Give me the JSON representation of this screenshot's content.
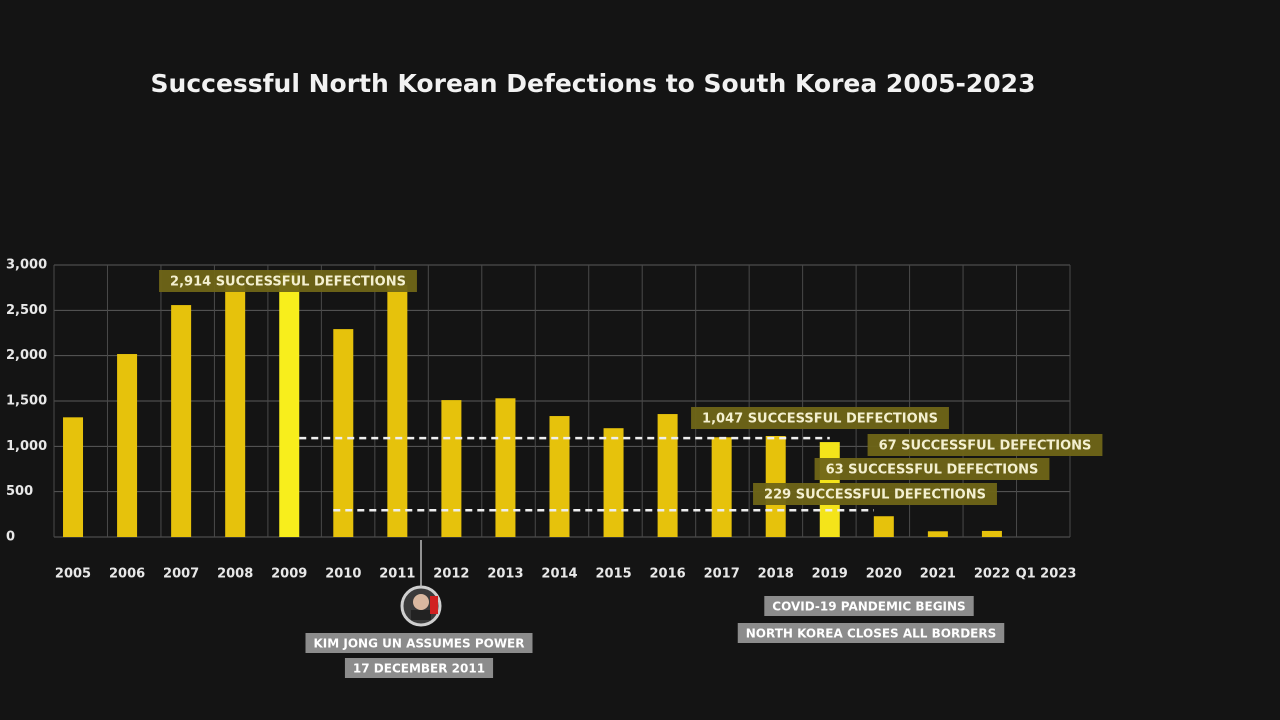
{
  "chart_data": {
    "type": "bar",
    "title": "Successful North Korean Defections to South Korea 2005-2023",
    "categories": [
      "2005",
      "2006",
      "2007",
      "2008",
      "2009",
      "2010",
      "2011",
      "2012",
      "2013",
      "2014",
      "2015",
      "2016",
      "2017",
      "2018",
      "2019",
      "2020",
      "2021",
      "2022",
      "Q1 2023"
    ],
    "values": [
      1320,
      2018,
      2558,
      2780,
      2914,
      2293,
      2780,
      1510,
      1530,
      1334,
      1200,
      1356,
      1100,
      1114,
      1047,
      229,
      63,
      67,
      null
    ],
    "value_labels": [
      null,
      null,
      null,
      null,
      "2,914 SUCCESSFUL DEFECTIONS",
      null,
      null,
      null,
      null,
      null,
      null,
      null,
      null,
      null,
      "1,047 SUCCESSFUL DEFECTIONS",
      "229 SUCCESSFUL DEFECTIONS",
      "63 SUCCESSFUL DEFECTIONS",
      "67 SUCCESSFUL DEFECTIONS",
      null
    ],
    "colors": [
      "#e6c20c",
      "#e6c20c",
      "#e6c20c",
      "#e6c20c",
      "#f8ee1c",
      "#e6c20c",
      "#e6c20c",
      "#e6c20c",
      "#e6c20c",
      "#e6c20c",
      "#e6c20c",
      "#e6c20c",
      "#e6c20c",
      "#e6c20c",
      "#f4e41a",
      "#e6c20c",
      "#e6c20c",
      "#e6c20c",
      "#e6c20c"
    ],
    "ylim": [
      0,
      3000
    ],
    "yticks": [
      0,
      500,
      {
        "value": 1000,
        "label": "1,000"
      },
      {
        "value": 1500,
        "label": "1,500"
      },
      {
        "value": 2000,
        "label": "2,000"
      },
      {
        "value": 2500,
        "label": "2,500"
      },
      {
        "value": 3000,
        "label": "3,000"
      }
    ],
    "grid": true,
    "annotations": {
      "leader": [
        "KIM JONG UN ASSUMES POWER",
        "17 DECEMBER 2011"
      ],
      "covid": [
        "COVID-19 PANDEMIC BEGINS",
        "NORTH KOREA CLOSES ALL BORDERS"
      ]
    }
  }
}
